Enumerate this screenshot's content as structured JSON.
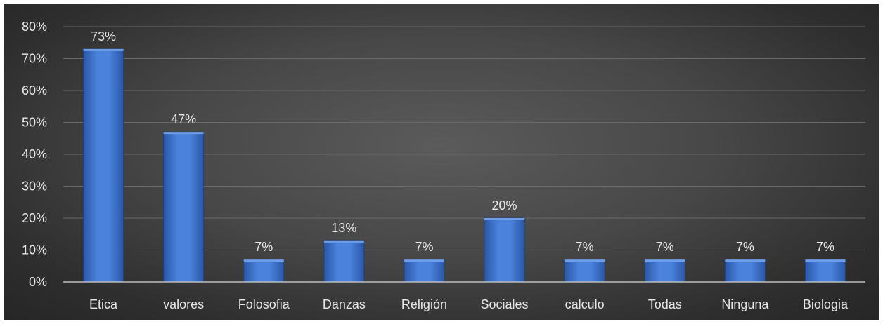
{
  "chart_data": {
    "type": "bar",
    "categories": [
      "Etica",
      "valores",
      "Folosofia",
      "Danzas",
      "Religión",
      "Sociales",
      "calculo",
      "Todas",
      "Ninguna",
      "Biologia"
    ],
    "values": [
      0.73,
      0.47,
      0.07,
      0.13,
      0.07,
      0.2,
      0.07,
      0.07,
      0.07,
      0.07
    ],
    "data_labels": [
      "73%",
      "47%",
      "7%",
      "13%",
      "7%",
      "20%",
      "7%",
      "7%",
      "7%",
      "7%"
    ],
    "y_ticks": [
      0,
      0.1,
      0.2,
      0.3,
      0.4,
      0.5,
      0.6,
      0.7,
      0.8
    ],
    "y_tick_labels": [
      "0%",
      "10%",
      "20%",
      "30%",
      "40%",
      "50%",
      "60%",
      "70%",
      "80%"
    ],
    "ylim": [
      0,
      0.8
    ],
    "grid": true,
    "legend": "none",
    "colors": {
      "bar_top": "#6f9ee8",
      "bar_mid": "#3f74d0",
      "bar_bottom": "#2a57a8",
      "grid": "#6a6a6a",
      "axis": "#bdbdbd",
      "text": "#e8e8e8"
    }
  }
}
